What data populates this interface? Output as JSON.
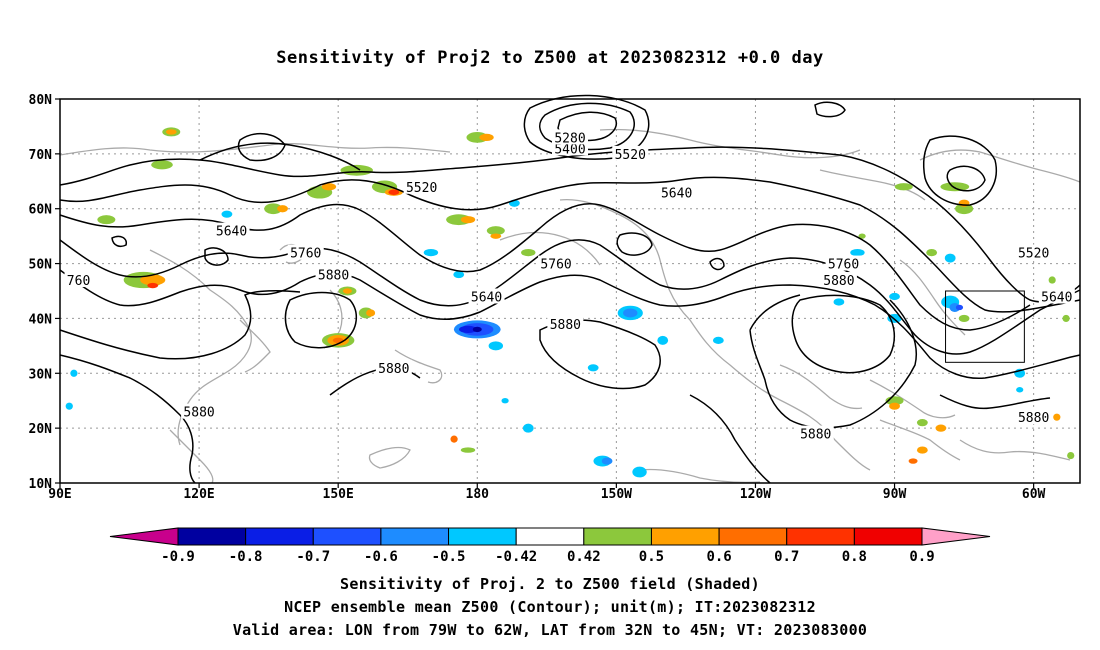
{
  "title": "Sensitivity of Proj2 to Z500 at 2023082312 +0.0 day",
  "map": {
    "lat_labels": [
      "80N",
      "70N",
      "60N",
      "50N",
      "40N",
      "30N",
      "20N",
      "10N"
    ],
    "lon_labels": [
      "90E",
      "120E",
      "150E",
      "180",
      "150W",
      "120W",
      "90W",
      "60W"
    ],
    "lat_range": [
      10,
      80
    ],
    "lon_range": [
      90,
      310
    ],
    "valid_box": {
      "lon": [
        281,
        298
      ],
      "lat": [
        32,
        45
      ]
    },
    "contour_labels": [
      {
        "text": "5520",
        "lon": 168,
        "lat": 64
      },
      {
        "text": "5520",
        "lon": 213,
        "lat": 70
      },
      {
        "text": "5520",
        "lon": 300,
        "lat": 52
      },
      {
        "text": "5400",
        "lon": 200,
        "lat": 71
      },
      {
        "text": "5280",
        "lon": 200,
        "lat": 73
      },
      {
        "text": "5640",
        "lon": 127,
        "lat": 56
      },
      {
        "text": "5640",
        "lon": 223,
        "lat": 63
      },
      {
        "text": "5640",
        "lon": 182,
        "lat": 44
      },
      {
        "text": "5640",
        "lon": 305,
        "lat": 44
      },
      {
        "text": "5760",
        "lon": 143,
        "lat": 52
      },
      {
        "text": "5760",
        "lon": 197,
        "lat": 50
      },
      {
        "text": "5760",
        "lon": 259,
        "lat": 50
      },
      {
        "text": "760",
        "lon": 94,
        "lat": 47
      },
      {
        "text": "5880",
        "lon": 149,
        "lat": 48
      },
      {
        "text": "5880",
        "lon": 199,
        "lat": 39
      },
      {
        "text": "5880",
        "lon": 258,
        "lat": 47
      },
      {
        "text": "5880",
        "lon": 162,
        "lat": 31
      },
      {
        "text": "5880",
        "lon": 120,
        "lat": 23
      },
      {
        "text": "5880",
        "lon": 253,
        "lat": 19
      },
      {
        "text": "5880",
        "lon": 300,
        "lat": 22
      }
    ]
  },
  "colorbar": {
    "labels": [
      "-0.9",
      "-0.8",
      "-0.7",
      "-0.6",
      "-0.5",
      "-0.42",
      "0.42",
      "0.5",
      "0.6",
      "0.7",
      "0.8",
      "0.9"
    ],
    "colors": [
      "#0000a0",
      "#0a1ee6",
      "#1e50ff",
      "#1e8cff",
      "#00c8ff",
      "#ffffff",
      "#8cc83c",
      "#ffa000",
      "#ff6e00",
      "#ff3200",
      "#f00000"
    ],
    "low_cap_color": "#c8008c",
    "high_cap_color": "#ffa0c8"
  },
  "footer": {
    "line1": "Sensitivity of Proj. 2 to Z500 field (Shaded)",
    "line2": "NCEP ensemble mean Z500 (Contour); unit(m); IT:2023082312",
    "line3": "Valid area: LON from 79W to 62W, LAT from 32N to 45N; VT: 2023083000"
  }
}
